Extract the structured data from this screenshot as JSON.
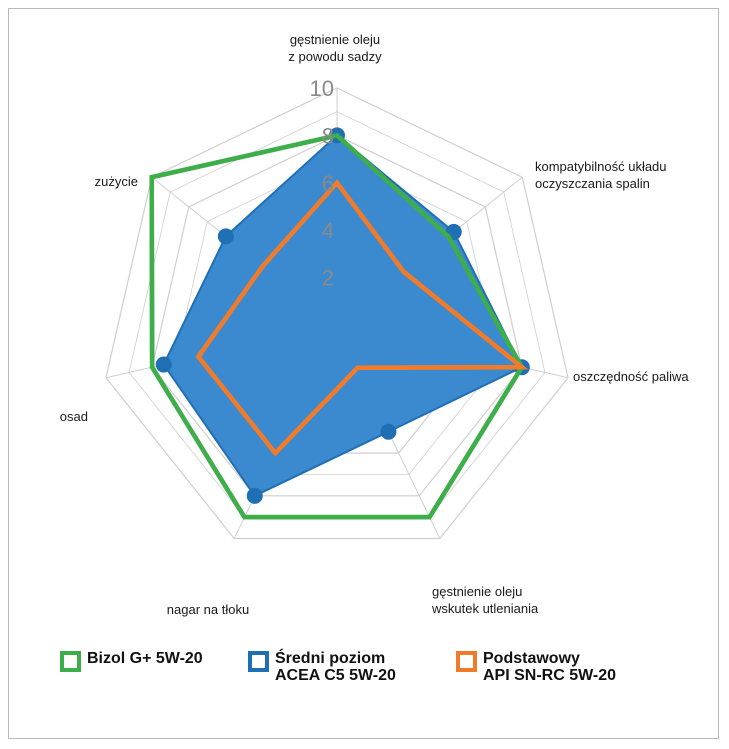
{
  "chart_data": {
    "type": "radar",
    "axes": [
      [
        "gęstnienie oleju",
        "z powodu sadzy"
      ],
      [
        "kompatybilność układu",
        "oczyszczania spalin"
      ],
      [
        "oszczędność paliwa"
      ],
      [
        "gęstnienie oleju",
        "wskutek utleniania"
      ],
      [
        "nagar na tłoku"
      ],
      [
        "osad"
      ],
      [
        "zużycie"
      ]
    ],
    "rlim": [
      0,
      10
    ],
    "ticks": [
      2,
      4,
      6,
      8,
      10
    ],
    "grid": true,
    "legend_position": "bottom",
    "series": [
      {
        "name": [
          "Bizol G+ 5W-20"
        ],
        "values": [
          8,
          6,
          8,
          9,
          9,
          8,
          10
        ],
        "color": "#3dae49",
        "fill": false
      },
      {
        "name": [
          "Średni poziom",
          "ACEA C5 5W-20"
        ],
        "values": [
          8,
          6.3,
          8,
          5,
          8,
          7.5,
          6
        ],
        "color": "#1f6fb5",
        "fill": true,
        "fill_color": "#3b8ad0"
      },
      {
        "name": [
          "Podstawowy",
          "API SN-RC 5W-20"
        ],
        "values": [
          6,
          3.6,
          8,
          2,
          6,
          6,
          4
        ],
        "color": "#f07b2a",
        "fill": false
      }
    ]
  }
}
